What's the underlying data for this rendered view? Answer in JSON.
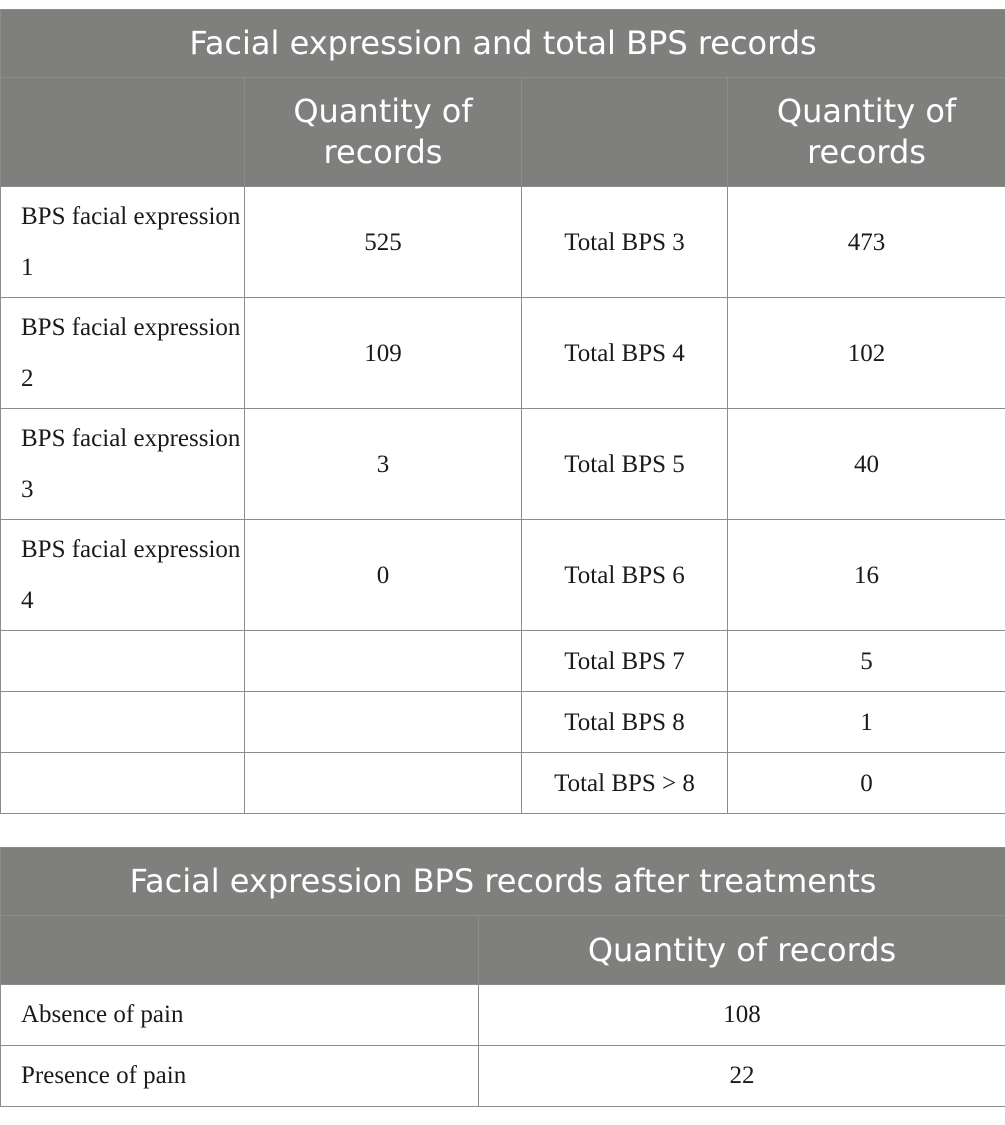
{
  "table1": {
    "title": "Facial expression and total BPS records",
    "col2_header": "Quantity of records",
    "col4_header": "Quantity of records",
    "rows": [
      {
        "label": "BPS facial expression 1",
        "qty": "525",
        "total_label": "Total BPS 3",
        "total_qty": "473"
      },
      {
        "label": "BPS facial expression 2",
        "qty": "109",
        "total_label": "Total BPS 4",
        "total_qty": "102"
      },
      {
        "label": "BPS facial expression 3",
        "qty": "3",
        "total_label": "Total BPS 5",
        "total_qty": "40"
      },
      {
        "label": "BPS facial expression 4",
        "qty": "0",
        "total_label": "Total BPS 6",
        "total_qty": "16"
      },
      {
        "label": "",
        "qty": "",
        "total_label": "Total BPS 7",
        "total_qty": "5"
      },
      {
        "label": "",
        "qty": "",
        "total_label": "Total BPS 8",
        "total_qty": "1"
      },
      {
        "label": "",
        "qty": "",
        "total_label": "Total BPS > 8",
        "total_qty": "0"
      }
    ]
  },
  "table2": {
    "title": "Facial expression BPS records after treatments",
    "col2_header": "Quantity of records",
    "rows": [
      {
        "label": "Absence of pain",
        "qty": "108"
      },
      {
        "label": "Presence of pain",
        "qty": "22"
      }
    ]
  }
}
